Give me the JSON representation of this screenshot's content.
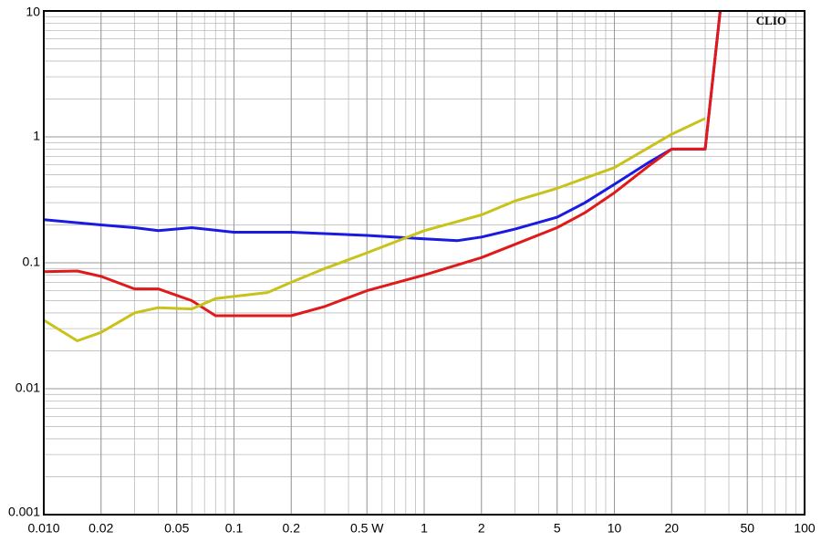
{
  "chart_data": {
    "type": "line",
    "annotation": "CLIO",
    "xscale": "log",
    "yscale": "log",
    "grid": true,
    "xlim": [
      0.01,
      100
    ],
    "ylim": [
      0.001,
      10
    ],
    "xticks": [
      {
        "value": 0.01,
        "label": "0.010"
      },
      0.02,
      0.05,
      0.1,
      0.2,
      {
        "value": 0.5,
        "label": "0.5 W"
      },
      1,
      2,
      5,
      10,
      20,
      50,
      100
    ],
    "yticks": [
      10,
      1,
      0.1,
      0.01,
      0.001
    ],
    "series": [
      {
        "color": "#1a1ae0",
        "x": [
          0.01,
          0.02,
          0.03,
          0.04,
          0.06,
          0.1,
          0.2,
          0.5,
          1,
          1.5,
          2,
          3,
          5,
          7,
          10,
          15,
          20,
          30,
          36
        ],
        "values": [
          0.22,
          0.2,
          0.19,
          0.18,
          0.19,
          0.175,
          0.175,
          0.165,
          0.155,
          0.15,
          0.16,
          0.185,
          0.23,
          0.3,
          0.42,
          0.62,
          0.8,
          0.8,
          10
        ]
      },
      {
        "color": "#e01a1a",
        "x": [
          0.01,
          0.015,
          0.02,
          0.03,
          0.04,
          0.06,
          0.08,
          0.1,
          0.2,
          0.3,
          0.5,
          1,
          2,
          3,
          5,
          7,
          10,
          15,
          20,
          30,
          36
        ],
        "values": [
          0.085,
          0.086,
          0.078,
          0.062,
          0.062,
          0.05,
          0.038,
          0.038,
          0.038,
          0.045,
          0.06,
          0.08,
          0.11,
          0.14,
          0.19,
          0.25,
          0.36,
          0.58,
          0.8,
          0.8,
          10
        ]
      },
      {
        "color": "#c8c21a",
        "x": [
          0.01,
          0.015,
          0.02,
          0.03,
          0.04,
          0.06,
          0.08,
          0.15,
          0.2,
          0.3,
          0.5,
          1,
          2,
          3,
          5,
          7,
          10,
          20,
          30
        ],
        "values": [
          0.035,
          0.024,
          0.028,
          0.04,
          0.044,
          0.043,
          0.052,
          0.058,
          0.07,
          0.09,
          0.12,
          0.18,
          0.24,
          0.31,
          0.39,
          0.47,
          0.57,
          1.05,
          1.4
        ]
      }
    ]
  }
}
